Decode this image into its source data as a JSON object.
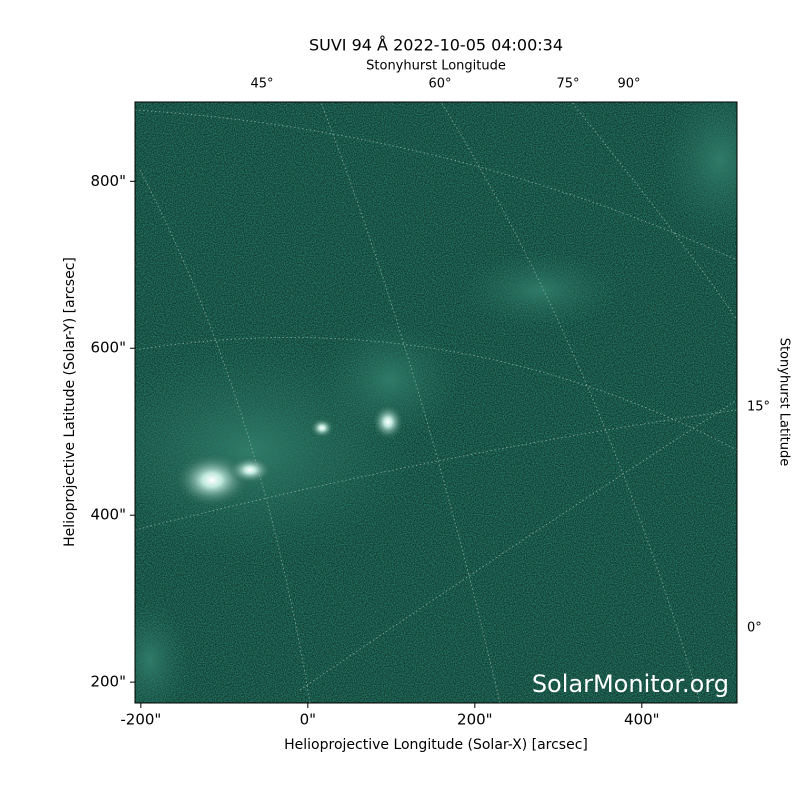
{
  "chart_data": {
    "type": "image",
    "title": "SUVI 94 Å 2022-10-05 04:00:34",
    "xlabel": "Helioprojective Longitude (Solar-X) [arcsec]",
    "ylabel": "Helioprojective Latitude (Solar-Y) [arcsec]",
    "top_label": "Stonyhurst Longitude",
    "right_label": "Stonyhurst Latitude",
    "watermark": "SolarMonitor.org",
    "xlim": [
      -207,
      514
    ],
    "ylim": [
      175,
      895
    ],
    "xticks": [
      {
        "value": -200,
        "label": "-200\""
      },
      {
        "value": 0,
        "label": "0\""
      },
      {
        "value": 200,
        "label": "200\""
      },
      {
        "value": 400,
        "label": "400\""
      }
    ],
    "yticks": [
      {
        "value": 200,
        "label": "200\""
      },
      {
        "value": 400,
        "label": "400\""
      },
      {
        "value": 600,
        "label": "600\""
      },
      {
        "value": 800,
        "label": "800\""
      }
    ],
    "top_ticks": [
      {
        "value": 45,
        "label": "45°"
      },
      {
        "value": 60,
        "label": "60°"
      },
      {
        "value": 75,
        "label": "75°"
      },
      {
        "value": 90,
        "label": "90°"
      }
    ],
    "right_ticks": [
      {
        "value": 15,
        "label": "15°"
      },
      {
        "value": 0,
        "label": "0°"
      }
    ]
  }
}
